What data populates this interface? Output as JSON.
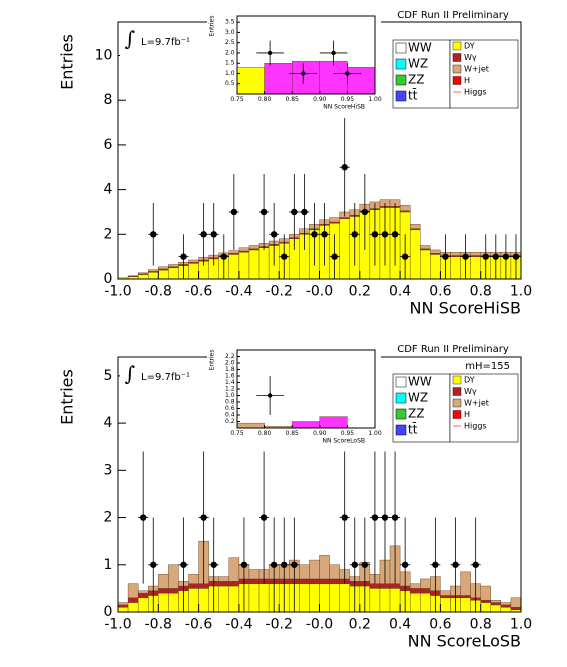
{
  "chart_data": [
    {
      "type": "stacked-histogram",
      "title": "CDF Run II Preliminary",
      "lumi_symbol": "∫",
      "annotation": "L=9.7fb⁻¹",
      "x_label": "NN ScoreHiSB",
      "y_label": "Entries",
      "bins": [
        -1,
        -0.95,
        -0.9,
        -0.85,
        -0.8,
        -0.75,
        -0.7,
        -0.65,
        -0.6,
        -0.55,
        -0.5,
        -0.45,
        -0.4,
        -0.35,
        -0.3,
        -0.25,
        -0.2,
        -0.15,
        -0.1,
        -0.05,
        0,
        0.05,
        0.1,
        0.15,
        0.2,
        0.25,
        0.3,
        0.35,
        0.4,
        0.45,
        0.5,
        0.55,
        0.6,
        0.65,
        0.7,
        0.75,
        0.8,
        0.85,
        0.9,
        0.95,
        1
      ],
      "series": [
        {
          "name": "DY",
          "color": "#ffff00",
          "values": [
            0.05,
            0.1,
            0.2,
            0.3,
            0.4,
            0.5,
            0.6,
            0.7,
            0.8,
            0.9,
            1.0,
            1.1,
            1.2,
            1.3,
            1.4,
            1.5,
            1.6,
            1.8,
            2.0,
            2.2,
            2.4,
            2.5,
            2.7,
            2.8,
            3.0,
            3.1,
            3.2,
            3.2,
            3.0,
            2.2,
            1.3,
            1.1,
            1.0,
            1.0,
            1.0,
            1.0,
            1.0,
            1.0,
            1.0,
            1.0
          ]
        },
        {
          "name": "Wγ",
          "color": "#b22222",
          "values": [
            0,
            0.02,
            0.03,
            0.04,
            0.05,
            0.05,
            0.05,
            0.05,
            0.05,
            0.05,
            0.05,
            0.05,
            0.05,
            0.05,
            0.05,
            0.05,
            0.05,
            0.05,
            0.05,
            0.05,
            0.05,
            0.05,
            0.05,
            0.05,
            0.05,
            0.05,
            0.05,
            0.05,
            0.05,
            0.05,
            0.05,
            0.05,
            0.05,
            0.05,
            0.05,
            0.05,
            0.05,
            0.05,
            0.05,
            0.05
          ]
        },
        {
          "name": "W+jet",
          "color": "#d9a87a",
          "values": [
            0,
            0.03,
            0.05,
            0.08,
            0.1,
            0.1,
            0.1,
            0.1,
            0.12,
            0.12,
            0.12,
            0.12,
            0.15,
            0.15,
            0.15,
            0.15,
            0.15,
            0.15,
            0.2,
            0.2,
            0.2,
            0.2,
            0.25,
            0.25,
            0.3,
            0.3,
            0.3,
            0.3,
            0.25,
            0.2,
            0.15,
            0.15,
            0.15,
            0.15,
            0.15,
            0.15,
            0.15,
            0.15,
            0.15,
            0.15
          ]
        }
      ],
      "legend_extra": [
        {
          "name": "WW",
          "color": "#ffffff"
        },
        {
          "name": "WZ",
          "color": "#00ffff"
        },
        {
          "name": "ZZ",
          "color": "#33cc33"
        },
        {
          "name": "tt̄",
          "color": "#4444ff"
        },
        {
          "name": "H",
          "color": "#ff0000"
        },
        {
          "name": "Higgs",
          "color": "#ff6666"
        }
      ],
      "data_points": {
        "x": [
          -0.825,
          -0.675,
          -0.575,
          -0.525,
          -0.475,
          -0.425,
          -0.275,
          -0.225,
          -0.175,
          -0.125,
          -0.075,
          -0.025,
          0.025,
          0.075,
          0.125,
          0.175,
          0.225,
          0.275,
          0.325,
          0.375,
          0.425,
          0.625,
          0.725,
          0.825,
          0.875,
          0.925,
          0.975
        ],
        "values": [
          2,
          1,
          2,
          2,
          1,
          3,
          3,
          2,
          1,
          3,
          3,
          2,
          2,
          1,
          5,
          2,
          3,
          2,
          2,
          2,
          1,
          1,
          1,
          1,
          1,
          1,
          1
        ],
        "errors": [
          1.4,
          1,
          1.4,
          1.4,
          1,
          1.7,
          1.7,
          1.4,
          1,
          1.7,
          1.7,
          1.4,
          1.4,
          1,
          2.2,
          1.4,
          1.7,
          1.4,
          1.4,
          1.4,
          1,
          1,
          1,
          1,
          1,
          1,
          1
        ]
      },
      "xlim": [
        -1,
        1
      ],
      "ylim": [
        0,
        11.5
      ],
      "xticks": [
        {
          "value": -1,
          "label": "-1.0"
        },
        -0.8,
        -0.6,
        -0.4,
        -0.2,
        {
          "value": 0,
          "label": "-0.0"
        },
        0.2,
        0.4,
        0.6,
        0.8,
        {
          "value": 1,
          "label": "1.0"
        }
      ],
      "yticks": [
        0,
        2,
        4,
        6,
        8,
        10
      ],
      "inset": {
        "x_label": "NN ScoreHiSB",
        "y_label": "Entries",
        "bins": [
          0.75,
          0.8,
          0.85,
          0.9,
          0.95,
          1.0
        ],
        "series": [
          {
            "color": "#ffff00",
            "values": [
              1.3,
              0,
              0,
              0,
              0
            ]
          },
          {
            "color": "#ff33ff",
            "values": [
              0,
              1.5,
              1.6,
              1.6,
              1.3
            ]
          }
        ],
        "data_points": {
          "x": [
            0.81,
            0.87,
            0.925,
            0.95
          ],
          "values": [
            2,
            1,
            2,
            1
          ],
          "errors": [
            0.6,
            0.5,
            0.6,
            0.5
          ]
        },
        "xlim": [
          0.75,
          1
        ],
        "ylim": [
          0,
          3.8
        ],
        "xticks": [
          0.75,
          {
            "value": 0.8,
            "label": "0.80"
          },
          0.85,
          {
            "value": 0.9,
            "label": "0.90"
          },
          0.95,
          {
            "value": 1,
            "label": "1.00"
          }
        ],
        "yticks": [
          0.5,
          {
            "value": 1,
            "label": "1.0"
          },
          1.5,
          {
            "value": 2,
            "label": "2.0"
          },
          2.5,
          {
            "value": 3,
            "label": "3.0"
          },
          3.5
        ]
      }
    },
    {
      "type": "stacked-histogram",
      "title": "CDF Run II Preliminary",
      "lumi_symbol": "∫",
      "annotation": "L=9.7fb⁻¹",
      "mass_label": "mH=155",
      "x_label": "NN ScoreLoSB",
      "y_label": "Entries",
      "bins": [
        -1,
        -0.95,
        -0.9,
        -0.85,
        -0.8,
        -0.75,
        -0.7,
        -0.65,
        -0.6,
        -0.55,
        -0.5,
        -0.45,
        -0.4,
        -0.35,
        -0.3,
        -0.25,
        -0.2,
        -0.15,
        -0.1,
        -0.05,
        0,
        0.05,
        0.1,
        0.15,
        0.2,
        0.25,
        0.3,
        0.35,
        0.4,
        0.45,
        0.5,
        0.55,
        0.6,
        0.65,
        0.7,
        0.75,
        0.8,
        0.85,
        0.9,
        0.95,
        1
      ],
      "series": [
        {
          "name": "DY",
          "color": "#ffff00",
          "values": [
            0.1,
            0.2,
            0.3,
            0.35,
            0.4,
            0.4,
            0.45,
            0.5,
            0.5,
            0.55,
            0.55,
            0.55,
            0.6,
            0.6,
            0.6,
            0.6,
            0.6,
            0.6,
            0.6,
            0.6,
            0.6,
            0.6,
            0.6,
            0.55,
            0.55,
            0.5,
            0.5,
            0.5,
            0.45,
            0.4,
            0.4,
            0.35,
            0.3,
            0.3,
            0.3,
            0.25,
            0.2,
            0.15,
            0.1,
            0.05
          ]
        },
        {
          "name": "Wγ",
          "color": "#b22222",
          "values": [
            0.05,
            0.1,
            0.1,
            0.1,
            0.1,
            0.1,
            0.1,
            0.1,
            0.1,
            0.1,
            0.1,
            0.1,
            0.1,
            0.1,
            0.1,
            0.1,
            0.1,
            0.1,
            0.1,
            0.1,
            0.1,
            0.1,
            0.1,
            0.1,
            0.1,
            0.1,
            0.1,
            0.1,
            0.1,
            0.1,
            0.1,
            0.1,
            0.05,
            0.05,
            0.05,
            0.05,
            0.05,
            0.05,
            0.05,
            0.05
          ]
        },
        {
          "name": "W+jet",
          "color": "#d9a87a",
          "values": [
            0.05,
            0.3,
            0.05,
            0.1,
            0.3,
            0.5,
            0.1,
            0.2,
            0.9,
            0.1,
            0.1,
            0.5,
            0.3,
            0.2,
            0.2,
            0.3,
            0.3,
            0.4,
            0.3,
            0.4,
            0.5,
            0.3,
            0.2,
            0.1,
            0.4,
            0.2,
            0.5,
            0.8,
            0.3,
            0.1,
            0.2,
            0.3,
            0.1,
            0.2,
            0.5,
            0.3,
            0.3,
            0.05,
            0.05,
            0.2
          ]
        }
      ],
      "legend_extra": [
        {
          "name": "WW",
          "color": "#ffffff"
        },
        {
          "name": "WZ",
          "color": "#00ffff"
        },
        {
          "name": "ZZ",
          "color": "#33cc33"
        },
        {
          "name": "tt̄",
          "color": "#4444ff"
        },
        {
          "name": "H",
          "color": "#ff0000"
        },
        {
          "name": "Higgs",
          "color": "#ff6666"
        }
      ],
      "data_points": {
        "x": [
          -0.875,
          -0.825,
          -0.675,
          -0.575,
          -0.525,
          -0.375,
          -0.275,
          -0.225,
          -0.175,
          -0.125,
          0.125,
          0.175,
          0.225,
          0.275,
          0.325,
          0.375,
          0.425,
          0.575,
          0.675,
          0.775
        ],
        "values": [
          2,
          1,
          1,
          2,
          1,
          1,
          2,
          1,
          1,
          1,
          2,
          1,
          1,
          2,
          2,
          2,
          1,
          1,
          1,
          1
        ],
        "errors": [
          1.4,
          1,
          1,
          1.4,
          1,
          1,
          1.4,
          1,
          1,
          1,
          1.4,
          1,
          1,
          1.4,
          1.4,
          1.4,
          1,
          1,
          1,
          1
        ]
      },
      "xlim": [
        -1,
        1
      ],
      "ylim": [
        0,
        5.4
      ],
      "xticks": [
        {
          "value": -1,
          "label": "-1.0"
        },
        -0.8,
        -0.6,
        -0.4,
        -0.2,
        {
          "value": 0,
          "label": "-0.0"
        },
        0.2,
        0.4,
        0.6,
        0.8,
        {
          "value": 1,
          "label": "1.0"
        }
      ],
      "yticks": [
        0,
        1,
        2,
        3,
        4,
        5
      ],
      "inset": {
        "x_label": "NN ScoreLoSB",
        "y_label": "Entries",
        "bins": [
          0.75,
          0.8,
          0.85,
          0.9,
          0.95,
          1.0
        ],
        "series": [
          {
            "color": "#d9a87a",
            "values": [
              0.15,
              0.05,
              0,
              0,
              0
            ]
          },
          {
            "color": "#ff33ff",
            "values": [
              0,
              0,
              0.2,
              0.35,
              0
            ]
          }
        ],
        "data_points": {
          "x": [
            0.81
          ],
          "values": [
            1
          ],
          "errors": [
            0.6
          ]
        },
        "xlim": [
          0.75,
          1
        ],
        "ylim": [
          0,
          2.4
        ],
        "xticks": [
          0.75,
          {
            "value": 0.8,
            "label": "0.80"
          },
          0.85,
          {
            "value": 0.9,
            "label": "0.90"
          },
          0.95,
          {
            "value": 1,
            "label": "1.00"
          }
        ],
        "yticks": [
          0.2,
          0.4,
          0.6,
          0.8,
          {
            "value": 1,
            "label": "1.0"
          },
          1.2,
          1.4,
          1.6,
          1.8,
          {
            "value": 2,
            "label": "2.0"
          },
          2.2
        ]
      }
    }
  ]
}
